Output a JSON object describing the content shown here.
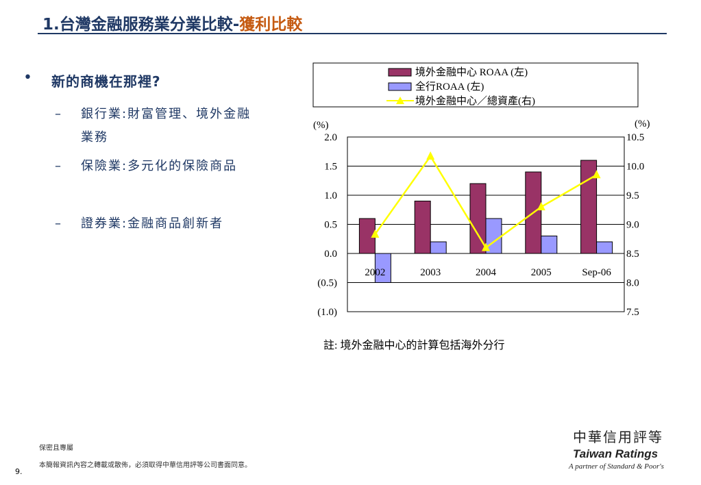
{
  "header": {
    "title_main": "1.台灣金融服務業分業比較-",
    "title_highlight": "獲利比較"
  },
  "content": {
    "bullet": "新的商機在那裡?",
    "sub_items": [
      {
        "dash": "–",
        "text": "銀行業:財富管理、境外金融業務"
      },
      {
        "dash": "–",
        "text": "保險業:多元化的保險商品"
      },
      {
        "dash": "–",
        "text": "證券業:金融商品創新者"
      }
    ]
  },
  "chart_data": {
    "type": "bar",
    "categories": [
      "2002",
      "2003",
      "2004",
      "2005",
      "Sep-06"
    ],
    "series": [
      {
        "name": "境外金融中心 ROAA (左)",
        "type": "bar",
        "axis": "left",
        "color": "#993366",
        "values": [
          0.6,
          0.9,
          1.2,
          1.4,
          1.6
        ]
      },
      {
        "name": "全行ROAA (左)",
        "type": "bar",
        "axis": "left",
        "color": "#9999ff",
        "values": [
          -0.5,
          0.2,
          0.6,
          0.3,
          0.2
        ]
      },
      {
        "name": "境外金融中心／總資產(右)",
        "type": "line",
        "axis": "right",
        "color": "#ffff00",
        "values": [
          8.83,
          10.17,
          8.6,
          9.3,
          9.85
        ]
      }
    ],
    "left_axis": {
      "unit": "(%)",
      "ylim": [
        -1.0,
        2.0
      ],
      "ticks": [
        2.0,
        1.5,
        1.0,
        0.5,
        0.0,
        -0.5,
        -1.0
      ],
      "tick_labels": [
        "2.0",
        "1.5",
        "1.0",
        "0.5",
        "0.0",
        "(0.5)",
        "(1.0)"
      ]
    },
    "right_axis": {
      "unit": "(%)",
      "ylim": [
        7.5,
        10.5
      ],
      "ticks": [
        10.5,
        10.0,
        9.5,
        9.0,
        8.5,
        8.0,
        7.5
      ],
      "tick_labels": [
        "10.5",
        "10.0",
        "9.5",
        "9.0",
        "8.5",
        "8.0",
        "7.5"
      ]
    },
    "grid": true,
    "legend_position": "top"
  },
  "note": "註: 境外金融中心的計算包括海外分行",
  "footer": {
    "confidential": "保密且專屬",
    "copyright": "本簡報資訊內容之轉載或散佈，必須取得中華信用評等公司書面同意。",
    "page_number": "9."
  },
  "logo": {
    "chinese": "中華信用評等",
    "english": "Taiwan Ratings",
    "tagline": "A partner of Standard & Poor's"
  }
}
